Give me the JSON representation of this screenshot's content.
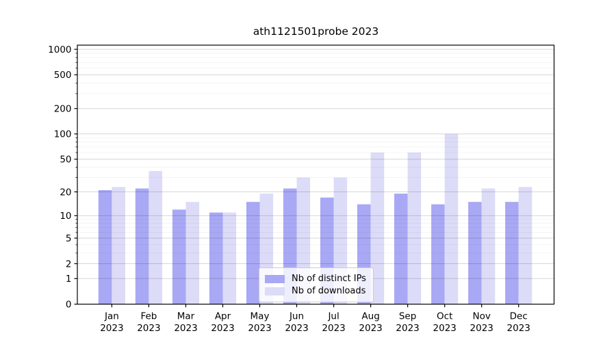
{
  "chart_data": {
    "type": "bar",
    "title": "ath1121501probe 2023",
    "categories": [
      "Jan",
      "Feb",
      "Mar",
      "Apr",
      "May",
      "Jun",
      "Jul",
      "Aug",
      "Sep",
      "Oct",
      "Nov",
      "Dec"
    ],
    "year_label": "2023",
    "series": [
      {
        "name": "Nb of distinct IPs",
        "color": "#a8a8f5",
        "values": [
          21,
          22,
          12,
          11,
          15,
          22,
          17,
          14,
          19,
          14,
          15,
          15
        ]
      },
      {
        "name": "Nb of downloads",
        "color": "#dcdcf8",
        "values": [
          23,
          36,
          15,
          11,
          19,
          30,
          30,
          60,
          60,
          100,
          22,
          23
        ]
      }
    ],
    "y_scale": "log1p",
    "ylim": [
      0,
      1120
    ],
    "y_major_ticks": [
      0,
      1,
      2,
      5,
      10,
      20,
      50,
      100,
      200,
      500,
      1000
    ],
    "y_minor_ticks": [
      3,
      4,
      6,
      7,
      8,
      9,
      30,
      40,
      60,
      70,
      80,
      90,
      300,
      400,
      600,
      700,
      800,
      900
    ],
    "grid": true,
    "legend_position": "lower center",
    "colors": {
      "axis": "#000000",
      "major_grid": "rgba(0,0,0,0.16)",
      "minor_grid": "rgba(0,0,0,0.055)",
      "background": "#ffffff",
      "tick_text": "#000000"
    }
  }
}
